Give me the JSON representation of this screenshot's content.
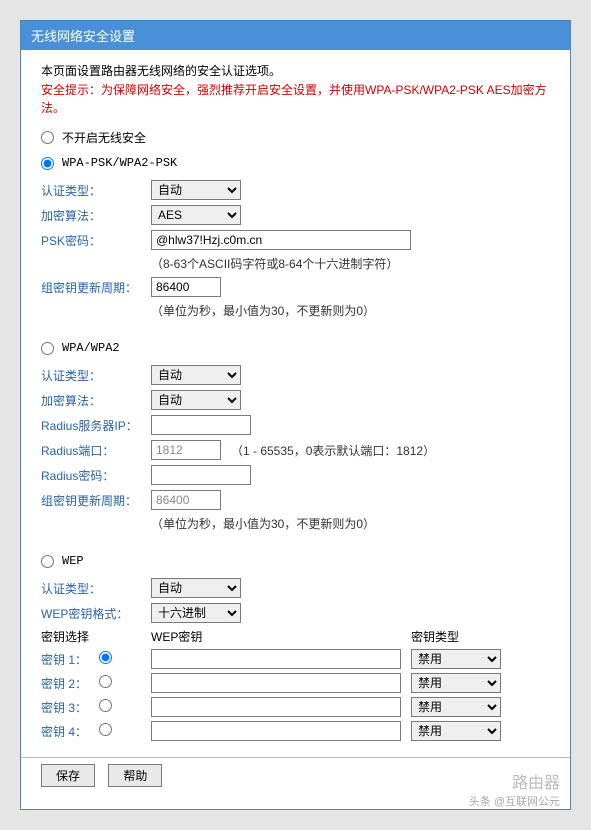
{
  "header": {
    "title": "无线网络安全设置"
  },
  "intro": {
    "line1": "本页面设置路由器无线网络的安全认证选项。",
    "line2": "安全提示：为保障网络安全，强烈推荐开启安全设置，并使用WPA-PSK/WPA2-PSK AES加密方法。"
  },
  "security_mode": "wpa-psk",
  "modes": {
    "none": {
      "label": "不开启无线安全"
    },
    "wpa_psk": {
      "label": "WPA-PSK/WPA2-PSK",
      "auth_label": "认证类型：",
      "auth_value": "自动",
      "enc_label": "加密算法：",
      "enc_value": "AES",
      "psk_label": "PSK密码：",
      "psk_value": "@hlw37!Hzj.c0m.cn",
      "psk_hint": "（8-63个ASCII码字符或8-64个十六进制字符）",
      "rekey_label": "组密钥更新周期：",
      "rekey_value": "86400",
      "rekey_hint": "（单位为秒，最小值为30，不更新则为0）"
    },
    "wpa": {
      "label": "WPA/WPA2",
      "auth_label": "认证类型：",
      "auth_value": "自动",
      "enc_label": "加密算法：",
      "enc_value": "自动",
      "radius_ip_label": "Radius服务器IP：",
      "radius_ip_value": "",
      "radius_port_label": "Radius端口：",
      "radius_port_value": "1812",
      "radius_port_hint": "（1 - 65535，0表示默认端口：1812）",
      "radius_pwd_label": "Radius密码：",
      "radius_pwd_value": "",
      "rekey_label": "组密钥更新周期：",
      "rekey_value": "86400",
      "rekey_hint": "（单位为秒，最小值为30，不更新则为0）"
    },
    "wep": {
      "label": "WEP",
      "auth_label": "认证类型：",
      "auth_value": "自动",
      "format_label": "WEP密钥格式：",
      "format_value": "十六进制",
      "col_select": "密钥选择",
      "col_key": "WEP密钥",
      "col_type": "密钥类型",
      "keys": [
        {
          "label": "密钥 1：",
          "value": "",
          "type": "禁用"
        },
        {
          "label": "密钥 2：",
          "value": "",
          "type": "禁用"
        },
        {
          "label": "密钥 3：",
          "value": "",
          "type": "禁用"
        },
        {
          "label": "密钥 4：",
          "value": "",
          "type": "禁用"
        }
      ]
    }
  },
  "options": {
    "auth": [
      "自动"
    ],
    "enc_psk": [
      "AES"
    ],
    "enc_wpa": [
      "自动"
    ],
    "wep_format": [
      "十六进制"
    ],
    "wep_type": [
      "禁用"
    ]
  },
  "footer": {
    "save": "保存",
    "help": "帮助"
  },
  "watermark": {
    "brand": "路由器",
    "credit": "头条 @互联网公元"
  },
  "colors": {
    "header_bg": "#4a90d9",
    "label": "#2863a8",
    "warning": "#d00000"
  }
}
